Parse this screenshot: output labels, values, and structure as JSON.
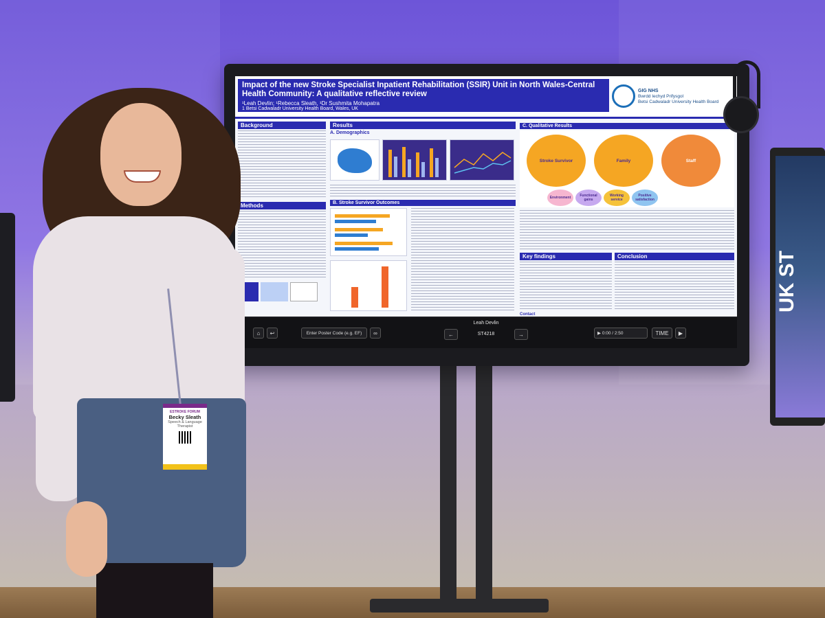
{
  "poster": {
    "title": "Impact of the new Stroke Specialist Inpatient Rehabilitation (SSIR) Unit in North Wales-Central Health Community: A qualitative reflective review",
    "authors": "¹Leah Devlin; ¹Rebecca Sleath, ¹Dr Sushmita Mohapatra",
    "affiliation": "1 Betsi Cadwaladr University Health Board, Wales, UK",
    "logo": {
      "text_nhs": "GIG NHS",
      "text_welsh": "Bwrdd Iechyd Prifysgol",
      "text_board": "Betsi Cadwaladr University Health Board"
    },
    "sections": {
      "background": "Background",
      "methods": "Methods",
      "results": "Results",
      "demographics": "A. Demographics",
      "stroke_outcomes": "B. Stroke Survivor Outcomes",
      "qualitative": "C. Qualitative Results",
      "key_findings": "Key findings",
      "conclusion": "Conclusion",
      "contact": "Contact"
    },
    "circles": {
      "c1": "Stroke Survivor",
      "c2": "Family",
      "c3": "Staff"
    },
    "pills": [
      "Environment",
      "Functional gains",
      "Working service",
      "Positive satisfaction"
    ]
  },
  "display_ui": {
    "presenter": "Leah Devlin",
    "search_placeholder": "Enter Poster Code (e.g. EF)",
    "poster_code": "ST4218",
    "time_readout": "0:00 / 2:50",
    "time_button": "TIME"
  },
  "badge": {
    "name": "Becky Sleath",
    "role": "Speech & Language Therapist",
    "event": "ESTROKE FORUM"
  },
  "sign": {
    "text": "UK ST"
  },
  "colors": {
    "poster_blue": "#2a2bb0",
    "wall_purple": "#6d55d8",
    "circle_orange": "#f08a3a"
  }
}
